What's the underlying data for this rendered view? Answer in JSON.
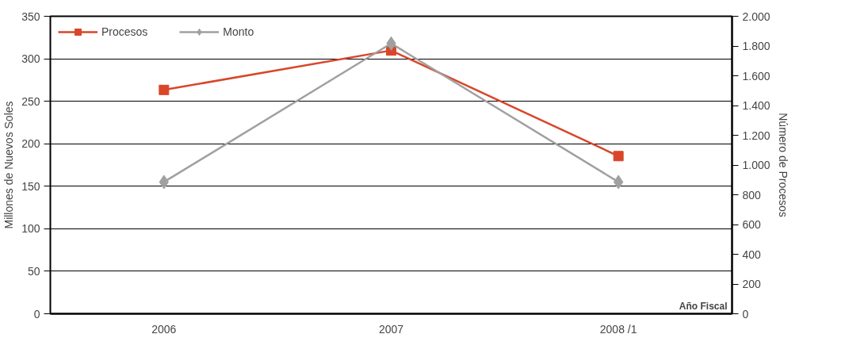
{
  "chart_data": {
    "type": "line",
    "categories": [
      "2006",
      "2007",
      "2008 /1"
    ],
    "xlabel": "Año Fiscal",
    "ylabel": "Millones de Nuevos Soles",
    "y2label": "Número de Procesos",
    "series": [
      {
        "name": "Procesos",
        "color": "#d9462a",
        "values": [
          1505,
          1770,
          1060
        ],
        "axis": "y2",
        "marker": "square"
      },
      {
        "name": "Monto",
        "color": "#a0a0a0",
        "values": [
          155,
          318,
          155
        ],
        "marker": "diamond"
      }
    ],
    "ylim": [
      0,
      350
    ],
    "yticks": [
      0,
      50,
      100,
      150,
      200,
      250,
      300,
      350
    ],
    "y2lim": [
      0,
      2000
    ],
    "y2ticks": [
      0,
      {
        "value": 200,
        "label": "200"
      },
      {
        "value": 400,
        "label": "400"
      },
      {
        "value": 600,
        "label": "600"
      },
      {
        "value": 800,
        "label": "800"
      },
      {
        "value": 1000,
        "label": "1.000"
      },
      {
        "value": 1200,
        "label": "1.200"
      },
      {
        "value": 1400,
        "label": "1.400"
      },
      {
        "value": 1600,
        "label": "1.600"
      },
      {
        "value": 1800,
        "label": "1.800"
      },
      {
        "value": 2000,
        "label": "2.000"
      }
    ],
    "grid": "y",
    "legend": "top left",
    "line_style": "solid"
  }
}
